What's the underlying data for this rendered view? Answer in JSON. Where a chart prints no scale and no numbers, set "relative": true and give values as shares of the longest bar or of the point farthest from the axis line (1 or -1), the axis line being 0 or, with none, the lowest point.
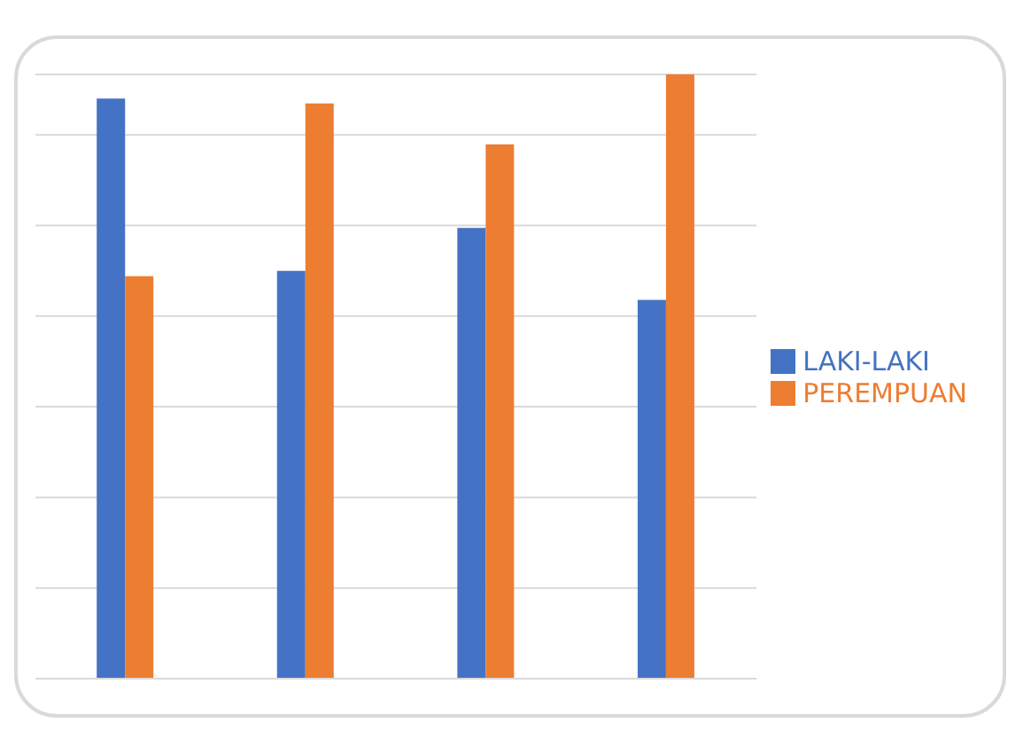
{
  "chart_data": {
    "type": "bar",
    "relative": true,
    "categories": [
      null,
      null,
      null,
      null
    ],
    "series": [
      {
        "name": "LAKI-LAKI",
        "color": "#4472c4",
        "values": [
          0.96,
          0.675,
          0.746,
          0.627
        ]
      },
      {
        "name": "PEREMPUAN",
        "color": "#ed7d31",
        "values": [
          0.666,
          0.952,
          0.884,
          1
        ]
      }
    ],
    "grid": "y",
    "legend": "right"
  }
}
